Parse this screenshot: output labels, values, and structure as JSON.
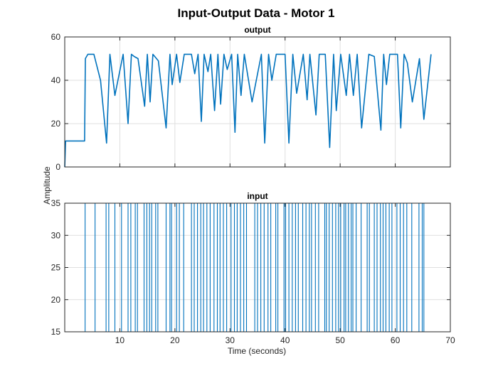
{
  "figure": {
    "title": "Input-Output Data - Motor 1",
    "ylabel": "Amplitude",
    "xlabel": "Time (seconds)"
  },
  "colors": {
    "line": "#0072BD",
    "axes": "#262626",
    "grid": "#DFDFDF"
  },
  "chart_data": [
    {
      "type": "line",
      "title": "output",
      "xlim": [
        0,
        70
      ],
      "ylim": [
        0,
        60
      ],
      "xticks": [
        10,
        20,
        30,
        40,
        50,
        60,
        70
      ],
      "yticks": [
        0,
        20,
        40,
        60
      ],
      "x_tick_labels_shown": false,
      "grid": true,
      "series": [
        {
          "x": [
            0,
            0.15,
            0.4,
            1,
            2,
            3,
            3.6,
            3.75,
            4.2,
            5.3,
            6.5,
            7.6,
            8.2,
            9.1,
            10.6,
            11.5,
            12.1,
            12.6,
            13.3,
            14.5,
            15.0,
            15.5,
            16.0,
            17.0,
            18.4,
            19.1,
            19.5,
            20.3,
            20.9,
            21.7,
            23.0,
            23.6,
            24.2,
            24.8,
            25.3,
            26.0,
            26.5,
            27.2,
            27.8,
            28.3,
            28.9,
            29.5,
            30.3,
            30.9,
            31.4,
            32.0,
            32.6,
            34.0,
            35.7,
            36.3,
            37.0,
            37.6,
            38.4,
            40.0,
            40.7,
            41.4,
            42.1,
            43.3,
            44.0,
            44.5,
            45.6,
            46.2,
            47.3,
            48.1,
            48.8,
            49.3,
            50.1,
            51.1,
            51.7,
            52.4,
            53.1,
            53.9,
            55.2,
            56.2,
            57.4,
            57.9,
            58.4,
            59.0,
            60.4,
            61.0,
            61.6,
            62.2,
            63.1,
            64.4,
            65.2,
            66.5
          ],
          "y": [
            0,
            12,
            12,
            12,
            12,
            12,
            12,
            50,
            52,
            52,
            40,
            11,
            52,
            33,
            52,
            20,
            52,
            51,
            50,
            28,
            52,
            30,
            52,
            49,
            18,
            52,
            38,
            52,
            39,
            52,
            52,
            43,
            52,
            21,
            52,
            44,
            52,
            26,
            52,
            29,
            52,
            45,
            52,
            16,
            52,
            33,
            52,
            30,
            52,
            11,
            52,
            40,
            52,
            52,
            11,
            52,
            34,
            52,
            31,
            52,
            24,
            52,
            52,
            9,
            52,
            26,
            52,
            33,
            52,
            33,
            52,
            18,
            52,
            51,
            17,
            52,
            38,
            52,
            52,
            18,
            52,
            48,
            30,
            50,
            22,
            52
          ]
        }
      ]
    },
    {
      "type": "line",
      "title": "input",
      "xlim": [
        0,
        70
      ],
      "ylim": [
        15,
        35
      ],
      "xticks": [
        10,
        20,
        30,
        40,
        50,
        60,
        70
      ],
      "yticks": [
        15,
        20,
        25,
        30,
        35
      ],
      "x_tick_labels_shown": true,
      "grid": true,
      "step": true,
      "series": [
        {
          "x": [
            0,
            3.7,
            5.5,
            7.5,
            8.0,
            9.1,
            10.3,
            11.5,
            12.0,
            12.8,
            13.2,
            14.4,
            14.9,
            15.4,
            15.8,
            16.5,
            16.9,
            18.4,
            19.1,
            19.4,
            20.3,
            20.8,
            21.6,
            23.0,
            23.5,
            24.1,
            24.7,
            25.2,
            25.8,
            26.4,
            27.1,
            27.7,
            28.2,
            28.8,
            29.4,
            30.2,
            30.8,
            31.3,
            31.9,
            32.5,
            33.0,
            34.5,
            35.0,
            35.6,
            36.2,
            36.9,
            37.4,
            38.3,
            38.7,
            39.8,
            40.1,
            40.7,
            41.3,
            41.9,
            42.4,
            43.2,
            43.8,
            44.4,
            44.8,
            45.5,
            46.1,
            47.2,
            47.5,
            48.0,
            48.6,
            49.2,
            49.7,
            50.1,
            50.7,
            51.0,
            51.5,
            52.0,
            52.3,
            52.9,
            53.8,
            54.9,
            55.3,
            56.2,
            56.7,
            57.3,
            57.8,
            58.3,
            58.9,
            59.4,
            60.3,
            60.9,
            61.5,
            62.1,
            63.0,
            64.3,
            64.9,
            65.2,
            66.5
          ],
          "y": [
            15,
            35,
            15,
            35,
            15,
            35,
            15,
            35,
            15,
            35,
            15,
            35,
            15,
            35,
            15,
            35,
            15,
            35,
            15,
            35,
            15,
            35,
            15,
            35,
            15,
            35,
            15,
            35,
            15,
            35,
            15,
            35,
            15,
            35,
            15,
            35,
            15,
            35,
            15,
            35,
            15,
            35,
            15,
            35,
            15,
            35,
            15,
            35,
            15,
            35,
            15,
            35,
            15,
            35,
            15,
            35,
            15,
            35,
            15,
            35,
            15,
            35,
            15,
            35,
            15,
            35,
            15,
            35,
            15,
            35,
            15,
            35,
            15,
            35,
            15,
            35,
            15,
            35,
            15,
            35,
            15,
            35,
            15,
            35,
            15,
            35,
            15,
            35,
            15,
            35,
            15,
            35,
            35
          ]
        }
      ]
    }
  ]
}
